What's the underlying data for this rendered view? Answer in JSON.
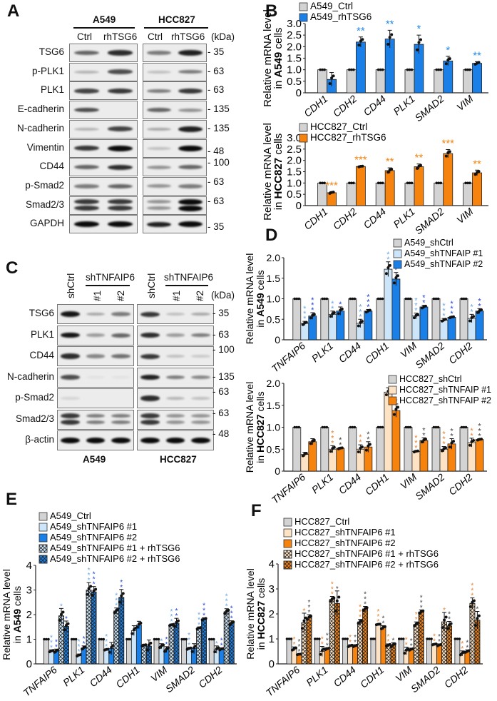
{
  "panels": {
    "A": "A",
    "B": "B",
    "C": "C",
    "D": "D",
    "E": "E",
    "F": "F"
  },
  "blot_A": {
    "cell_lines": [
      "A549",
      "HCC827"
    ],
    "lanes": [
      "Ctrl",
      "rhTSG6"
    ],
    "unit": "(kDa)",
    "rows": [
      {
        "label": "TSG6",
        "marker": "35"
      },
      {
        "label": "p-PLK1",
        "marker": "63"
      },
      {
        "label": "PLK1",
        "marker": "63"
      },
      {
        "label": "E-cadherin",
        "marker": "135"
      },
      {
        "label": "N-cadherin",
        "marker": "135"
      },
      {
        "label": "Vimentin",
        "marker": "48"
      },
      {
        "label": "CD44",
        "marker": "100"
      },
      {
        "label": "p-Smad2",
        "marker": "63"
      },
      {
        "label": "Smad2/3",
        "marker": "63"
      },
      {
        "label": "GAPDH",
        "marker": "35"
      }
    ]
  },
  "blot_C": {
    "cell_lines": [
      "A549",
      "HCC827"
    ],
    "lanes": [
      "shCtrl",
      "#1",
      "#2"
    ],
    "group_label": "shTNFAIP6",
    "unit": "(kDa)",
    "rows": [
      {
        "label": "TSG6",
        "marker": "35"
      },
      {
        "label": "PLK1",
        "marker": "63"
      },
      {
        "label": "CD44",
        "marker": "100"
      },
      {
        "label": "N-cadherin",
        "marker": "135"
      },
      {
        "label": "p-Smad2",
        "marker": "63"
      },
      {
        "label": "Smad2/3",
        "marker": "63"
      },
      {
        "label": "β-actin",
        "marker": "48"
      }
    ]
  },
  "colors": {
    "gray": "#d3d3d3",
    "blue": "#1a7fe6",
    "light_blue": "#cde5f8",
    "orange": "#f7830f",
    "light_orange": "#fde2c4",
    "star_light_blue": "#6aa6e0",
    "star_blue": "#1f3fd8",
    "star_blue_B": "#2a8ae8",
    "star_orange": "#e8822e",
    "star_dark": "#444444"
  },
  "chart_data": [
    {
      "panel": "B",
      "type": "bar",
      "categories": [
        "CDH1",
        "CDH2",
        "CD44",
        "PLK1",
        "SMAD2",
        "VIM"
      ],
      "ylim": [
        0,
        3
      ],
      "yticks": [
        "0",
        "0.5",
        "1.0",
        "1.5",
        "2.0",
        "2.5",
        "3.0"
      ],
      "ylabel": {
        "line1": "Relative mRNA level",
        "pre": "in ",
        "bold": "A549",
        "post": " cells"
      },
      "series": [
        {
          "name": "A549_Ctrl",
          "color": "#d3d3d3",
          "values": [
            1,
            1,
            1,
            1,
            1,
            1
          ],
          "errors": [
            0,
            0,
            0,
            0,
            0,
            0
          ],
          "stars": [
            "",
            "",
            "",
            "",
            "",
            ""
          ]
        },
        {
          "name": "A549_rhTSG6",
          "color": "#1a7fe6",
          "star_color": "#2a8ae8",
          "values": [
            0.58,
            2.2,
            2.33,
            2.1,
            1.38,
            1.28
          ],
          "errors": [
            0.3,
            0.22,
            0.38,
            0.4,
            0.2,
            0.07
          ],
          "stars": [
            "",
            "**",
            "**",
            "*",
            "*",
            "**"
          ]
        }
      ]
    },
    {
      "panel": "B",
      "type": "bar",
      "categories": [
        "CDH1",
        "CDH2",
        "CD44",
        "PLK1",
        "SMAD2",
        "VIM"
      ],
      "ylim": [
        0,
        3
      ],
      "yticks": [
        "0",
        "0.5",
        "1.0",
        "1.5",
        "2.0",
        "2.5",
        "3.0"
      ],
      "ylabel": {
        "line1": "Relative mRNA level",
        "pre": "in ",
        "bold": "HCC827",
        "post": " cells"
      },
      "series": [
        {
          "name": "HCC827_Ctrl",
          "color": "#d3d3d3",
          "values": [
            1,
            1,
            1,
            1,
            1,
            1
          ],
          "errors": [
            0,
            0,
            0,
            0,
            0,
            0
          ],
          "stars": [
            "",
            "",
            "",
            "",
            "",
            ""
          ]
        },
        {
          "name": "HCC827_rhTSG6",
          "color": "#f7830f",
          "star_color": "#f7830f",
          "values": [
            0.57,
            1.73,
            1.55,
            1.72,
            2.3,
            1.45
          ],
          "errors": [
            0.05,
            0.03,
            0.12,
            0.12,
            0.18,
            0.12
          ],
          "stars": [
            "***",
            "***",
            "**",
            "**",
            "***",
            "**"
          ]
        }
      ]
    },
    {
      "panel": "D",
      "type": "bar",
      "categories": [
        "TNFAIP6",
        "PLK1",
        "CD44",
        "CDH1",
        "VIM",
        "SMAD2",
        "CDH2"
      ],
      "ylim": [
        0,
        2
      ],
      "yticks": [
        "0",
        "0.5",
        "1.0",
        "1.5",
        "2.0"
      ],
      "ylabel": {
        "line1": "Relative mRNA level",
        "pre": "in ",
        "bold": "A549",
        "post": " cells"
      },
      "series": [
        {
          "name": "A549_shCtrl",
          "color": "#d3d3d3",
          "values": [
            1,
            1,
            1,
            1,
            1,
            1,
            1
          ],
          "errors": [
            0,
            0,
            0,
            0,
            0,
            0,
            0
          ],
          "stars": [
            "",
            "",
            "",
            "",
            "",
            "",
            ""
          ]
        },
        {
          "name": "A549_shTNFAIP #1",
          "color": "#cde5f8",
          "star_color": "#6aa6e0",
          "values": [
            0.4,
            0.62,
            0.4,
            1.72,
            0.58,
            0.48,
            0.52
          ],
          "errors": [
            0.05,
            0.08,
            0.1,
            0.18,
            0.07,
            0.04,
            0.1
          ],
          "stars": [
            "***",
            "**",
            "***",
            "**",
            "***",
            "***",
            "**"
          ]
        },
        {
          "name": "A549_shTNFAIP #2",
          "color": "#1a7fe6",
          "star_color": "#1f3fd8",
          "values": [
            0.58,
            0.7,
            0.7,
            1.48,
            0.8,
            0.55,
            0.7
          ],
          "errors": [
            0.08,
            0.1,
            0.04,
            0.16,
            0.04,
            0.02,
            0.06
          ],
          "stars": [
            "***",
            "*",
            "***",
            "*",
            "**",
            "***",
            "**"
          ]
        }
      ]
    },
    {
      "panel": "D",
      "type": "bar",
      "categories": [
        "TNFAIP6",
        "PLK1",
        "CD44",
        "CDH1",
        "VIM",
        "SMAD2",
        "CDH2"
      ],
      "ylim": [
        0,
        2
      ],
      "yticks": [
        "0",
        "0.5",
        "1.0",
        "1.5",
        "2.0"
      ],
      "ylabel": {
        "line1": "Relative mRNA level",
        "pre": "in ",
        "bold": "HCC827",
        "post": " cells"
      },
      "series": [
        {
          "name": "HCC827_shCtrl",
          "color": "#d3d3d3",
          "values": [
            1,
            1,
            1,
            1,
            1,
            1,
            1
          ],
          "errors": [
            0,
            0,
            0,
            0,
            0,
            0,
            0
          ],
          "stars": [
            "",
            "",
            "",
            "",
            "",
            "",
            ""
          ]
        },
        {
          "name": "HCC827_shTNFAIP #1",
          "color": "#fde2c4",
          "star_color": "#e8822e",
          "values": [
            0.38,
            0.5,
            0.5,
            1.8,
            0.45,
            0.5,
            0.65
          ],
          "errors": [
            0.05,
            0.08,
            0.1,
            0.1,
            0.02,
            0.06,
            0.1
          ],
          "stars": [
            "",
            "***",
            "**",
            "",
            "***",
            "***",
            "**"
          ]
        },
        {
          "name": "HCC827_shTNFAIP #2",
          "color": "#f7830f",
          "star_color": "#444444",
          "values": [
            0.67,
            0.52,
            0.55,
            1.38,
            0.7,
            0.62,
            0.72
          ],
          "errors": [
            0.07,
            0.02,
            0.12,
            0.15,
            0.06,
            0.12,
            0.02
          ],
          "stars": [
            "",
            "**",
            "**",
            "*",
            "**",
            "**",
            "***"
          ]
        }
      ]
    },
    {
      "panel": "E",
      "type": "bar",
      "categories": [
        "TNFAIP6",
        "PLK1",
        "CD44",
        "CDH1",
        "VIM",
        "SMAD2",
        "CDH2"
      ],
      "ylim": [
        0,
        4
      ],
      "yticks": [
        "0",
        "1",
        "2",
        "3",
        "4"
      ],
      "ylabel": {
        "line1": "Relative mRNA level",
        "pre": "in ",
        "bold": "A549",
        "post": " cells"
      },
      "series": [
        {
          "name": "A549_Ctrl",
          "color": "#d3d3d3",
          "values": [
            1,
            1,
            1,
            1,
            1,
            1,
            1
          ],
          "errors": [
            0,
            0,
            0,
            0,
            0,
            0,
            0
          ],
          "stars": [
            "",
            "",
            "",
            "",
            "",
            "",
            ""
          ]
        },
        {
          "name": "A549_shTNFAIP6 #1",
          "color": "#cde5f8",
          "star_color": "#6aa6e0",
          "values": [
            0.52,
            0.35,
            0.58,
            1.35,
            0.72,
            0.62,
            0.58
          ],
          "errors": [
            0.05,
            0.05,
            0.03,
            0.2,
            0.1,
            0.05,
            0.15
          ],
          "stars": [
            "***",
            "***",
            "***",
            "",
            "*",
            "***",
            "*"
          ]
        },
        {
          "name": "A549_shTNFAIP6 #2",
          "color": "#1a7fe6",
          "star_color": "#1f3fd8",
          "values": [
            0.52,
            0.65,
            0.62,
            1.58,
            0.58,
            0.62,
            0.6
          ],
          "errors": [
            0.08,
            0.08,
            0.25,
            0.15,
            0.12,
            0.2,
            0.05
          ],
          "stars": [
            "**",
            "**",
            "",
            "",
            "**",
            "",
            "**"
          ]
        },
        {
          "name": "A549_shTNFAIP6 #1 + rhTSG6",
          "color": "#cde5f8",
          "hatch": true,
          "star_color": "#6aa6e0",
          "values": [
            1.95,
            3.0,
            2.15,
            0.75,
            1.58,
            1.45,
            2.12
          ],
          "errors": [
            0.3,
            0.3,
            0.12,
            0.05,
            0.04,
            0.05,
            0.12
          ],
          "stars": [
            "*",
            "***",
            "***",
            "",
            "***",
            "***",
            "***"
          ]
        },
        {
          "name": "A549_shTNFAIP6 #2 + rhTSG6",
          "color": "#1a7fe6",
          "hatch": true,
          "star_color": "#1f3fd8",
          "values": [
            1.52,
            2.92,
            2.7,
            0.72,
            1.65,
            1.82,
            1.65
          ],
          "errors": [
            0.22,
            0.22,
            0.32,
            0.25,
            0.2,
            0.05,
            0.1
          ],
          "stars": [
            "*",
            "***",
            "**",
            "",
            "**",
            "***",
            "***"
          ]
        }
      ]
    },
    {
      "panel": "F",
      "type": "bar",
      "categories": [
        "TNFAIP6",
        "PLK1",
        "CD44",
        "CDH1",
        "VIM",
        "SMAD2",
        "CDH2"
      ],
      "ylim": [
        0,
        4
      ],
      "yticks": [
        "0",
        "1",
        "2",
        "3",
        "4"
      ],
      "ylabel": {
        "line1": "Relative mRNA level",
        "pre": "in ",
        "bold": "HCC827",
        "post": " cells"
      },
      "series": [
        {
          "name": "HCC827_Ctrl",
          "color": "#d3d3d3",
          "values": [
            1,
            1,
            1,
            1,
            1,
            1,
            1
          ],
          "errors": [
            0,
            0,
            0,
            0,
            0,
            0,
            0
          ],
          "stars": [
            "",
            "",
            "",
            "",
            "",
            "",
            ""
          ]
        },
        {
          "name": "HCC827_shTNFAIP6 #1",
          "color": "#fde2c4",
          "star_color": "#e8822e",
          "values": [
            0.6,
            0.5,
            0.72,
            1.58,
            0.52,
            0.78,
            0.42
          ],
          "errors": [
            0.08,
            0.2,
            0.05,
            0.02,
            0.15,
            0.03,
            0.1
          ],
          "stars": [
            "**",
            "**",
            "**",
            "***",
            "**",
            "**",
            "**"
          ]
        },
        {
          "name": "HCC827_shTNFAIP6 #2",
          "color": "#f7830f",
          "star_color": "#444444",
          "values": [
            0.38,
            0.6,
            0.72,
            1.45,
            0.58,
            0.75,
            0.5
          ],
          "errors": [
            0.02,
            0.05,
            0.05,
            0.08,
            0.05,
            0.05,
            0.06
          ],
          "stars": [
            "***",
            "***",
            "**",
            "**",
            "**",
            "**",
            "**"
          ]
        },
        {
          "name": "HCC827_shTNFAIP6 #1 + rhTSG6",
          "color": "#fde2c4",
          "hatch": true,
          "star_color": "#e8822e",
          "values": [
            1.65,
            2.58,
            1.68,
            0.75,
            1.58,
            1.68,
            2.42
          ],
          "errors": [
            0.38,
            0.12,
            0.1,
            0.05,
            0.1,
            0.38,
            0.22
          ],
          "stars": [
            "*",
            "***",
            "***",
            "**",
            "**",
            "*",
            "***"
          ]
        },
        {
          "name": "HCC827_shTNFAIP6 #2 + rhTSG6",
          "color": "#f7830f",
          "hatch": true,
          "star_color": "#444444",
          "values": [
            1.85,
            2.42,
            2.2,
            0.75,
            2.08,
            1.52,
            1.75
          ],
          "errors": [
            0.12,
            0.5,
            0.1,
            0.1,
            0.08,
            0.18,
            0.35
          ],
          "stars": [
            "***",
            "*",
            "***",
            "*",
            "***",
            "**",
            "*"
          ]
        }
      ]
    }
  ]
}
